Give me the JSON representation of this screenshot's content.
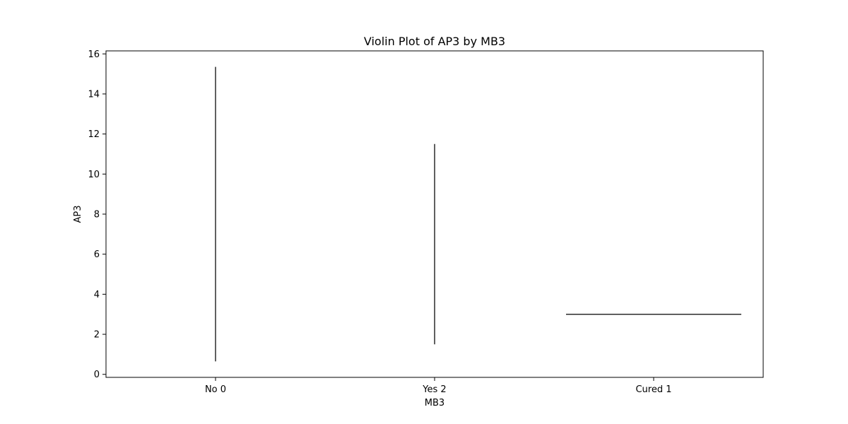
{
  "chart_data": {
    "type": "violin",
    "title": "Violin Plot of AP3 by MB3",
    "xlabel": "MB3",
    "ylabel": "AP3",
    "categories": [
      "No 0",
      "Yes 2",
      "Cured 1"
    ],
    "ylim": [
      -0.15,
      16.15
    ],
    "yticks": [
      0,
      2,
      4,
      6,
      8,
      10,
      12,
      14,
      16
    ],
    "ytick_labels": [
      "0",
      "2",
      "4",
      "6",
      "8",
      "10",
      "12",
      "14",
      "16"
    ],
    "groups": [
      {
        "category": "No 0",
        "min": 0.65,
        "max": 15.35
      },
      {
        "category": "Yes 2",
        "min": 1.5,
        "max": 11.5
      },
      {
        "category": "Cured 1",
        "min": 3.0,
        "max": 3.0
      }
    ],
    "grid": false,
    "legend": "none",
    "colors": {
      "mark": "#2b2b2b",
      "axes": "#000000",
      "background": "#ffffff"
    }
  }
}
